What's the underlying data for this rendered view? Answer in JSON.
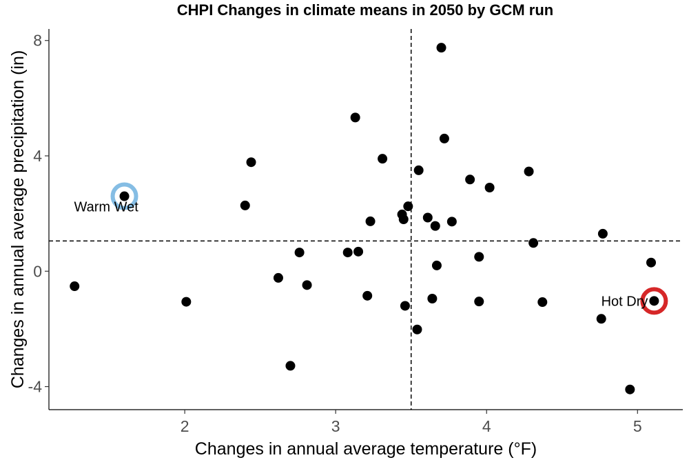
{
  "chart_data": {
    "type": "scatter",
    "title": "CHPI Changes in climate means in 2050 by GCM run",
    "xlabel": "Changes in annual average temperature (°F)",
    "ylabel": "Changes in annual average precipitation (in)",
    "xlim": [
      1.1,
      5.3
    ],
    "ylim": [
      -4.8,
      8.4
    ],
    "xticks": [
      2,
      3,
      4,
      5
    ],
    "yticks": [
      -4,
      0,
      4,
      8
    ],
    "grid": false,
    "reference_lines": {
      "x": 3.5,
      "y": 1.05,
      "style": "dashed"
    },
    "points": [
      {
        "x": 1.27,
        "y": -0.52
      },
      {
        "x": 1.6,
        "y": 2.6
      },
      {
        "x": 2.01,
        "y": -1.06
      },
      {
        "x": 2.4,
        "y": 2.28
      },
      {
        "x": 2.44,
        "y": 3.78
      },
      {
        "x": 2.62,
        "y": -0.23
      },
      {
        "x": 2.7,
        "y": -3.28
      },
      {
        "x": 2.76,
        "y": 0.65
      },
      {
        "x": 2.81,
        "y": -0.48
      },
      {
        "x": 3.08,
        "y": 0.65
      },
      {
        "x": 3.13,
        "y": 5.33
      },
      {
        "x": 3.15,
        "y": 0.68
      },
      {
        "x": 3.21,
        "y": -0.85
      },
      {
        "x": 3.23,
        "y": 1.73
      },
      {
        "x": 3.31,
        "y": 3.9
      },
      {
        "x": 3.44,
        "y": 1.97
      },
      {
        "x": 3.45,
        "y": 1.8
      },
      {
        "x": 3.46,
        "y": -1.2
      },
      {
        "x": 3.48,
        "y": 2.25
      },
      {
        "x": 3.54,
        "y": -2.02
      },
      {
        "x": 3.55,
        "y": 3.5
      },
      {
        "x": 3.61,
        "y": 1.86
      },
      {
        "x": 3.64,
        "y": -0.95
      },
      {
        "x": 3.66,
        "y": 1.57
      },
      {
        "x": 3.67,
        "y": 0.2
      },
      {
        "x": 3.7,
        "y": 7.75
      },
      {
        "x": 3.72,
        "y": 4.6
      },
      {
        "x": 3.77,
        "y": 1.72
      },
      {
        "x": 3.89,
        "y": 3.18
      },
      {
        "x": 3.95,
        "y": 0.5
      },
      {
        "x": 3.95,
        "y": -1.05
      },
      {
        "x": 4.02,
        "y": 2.9
      },
      {
        "x": 4.28,
        "y": 3.46
      },
      {
        "x": 4.31,
        "y": 0.98
      },
      {
        "x": 4.37,
        "y": -1.07
      },
      {
        "x": 4.76,
        "y": -1.65
      },
      {
        "x": 4.77,
        "y": 1.3
      },
      {
        "x": 4.95,
        "y": -4.1
      },
      {
        "x": 5.09,
        "y": 0.3
      },
      {
        "x": 5.11,
        "y": -1.03
      }
    ],
    "highlights": [
      {
        "label": "Warm Wet",
        "x": 1.6,
        "y": 2.6,
        "color": "#85bde4"
      },
      {
        "label": "Hot Dry",
        "x": 5.11,
        "y": -1.03,
        "color": "#d62728"
      }
    ]
  }
}
